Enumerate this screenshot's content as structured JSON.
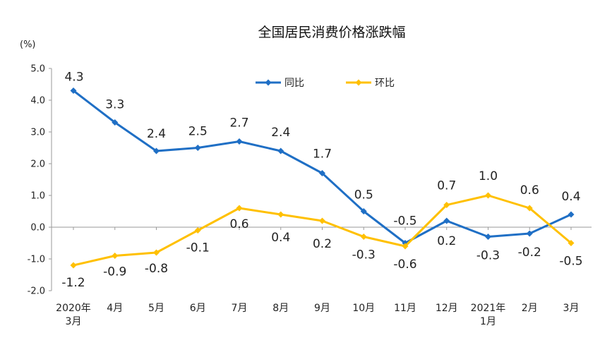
{
  "chart_data": {
    "type": "line",
    "title": "全国居民消费价格涨跌幅",
    "unit": "(%)",
    "ylim": [
      -2.0,
      5.0
    ],
    "yticks": [
      "5.0",
      "4.0",
      "3.0",
      "2.0",
      "1.0",
      "0.0",
      "-1.0",
      "-2.0"
    ],
    "ytick_values": [
      5,
      4,
      3,
      2,
      1,
      0,
      -1,
      -2
    ],
    "categories": [
      [
        "2020年",
        "3月"
      ],
      [
        "4月"
      ],
      [
        "5月"
      ],
      [
        "6月"
      ],
      [
        "7月"
      ],
      [
        "8月"
      ],
      [
        "9月"
      ],
      [
        "10月"
      ],
      [
        "11月"
      ],
      [
        "12月"
      ],
      [
        "2021年",
        "1月"
      ],
      [
        "2月"
      ],
      [
        "3月"
      ]
    ],
    "legend_position": "top-center",
    "grid": false,
    "series": [
      {
        "name": "同比",
        "color": "#1f6fc5",
        "values": [
          4.3,
          3.3,
          2.4,
          2.5,
          2.7,
          2.4,
          1.7,
          0.5,
          -0.5,
          0.2,
          -0.3,
          -0.2,
          0.4
        ],
        "labels": [
          "4.3",
          "3.3",
          "2.4",
          "2.5",
          "2.7",
          "2.4",
          "1.7",
          "0.5",
          "-0.5",
          "0.2",
          "-0.3",
          "-0.2",
          "0.4"
        ]
      },
      {
        "name": "环比",
        "color": "#ffc000",
        "values": [
          -1.2,
          -0.9,
          -0.8,
          -0.1,
          0.6,
          0.4,
          0.2,
          -0.3,
          -0.6,
          0.7,
          1.0,
          0.6,
          -0.5
        ],
        "labels": [
          "-1.2",
          "-0.9",
          "-0.8",
          "-0.1",
          "0.6",
          "0.4",
          "0.2",
          "-0.3",
          "-0.6",
          "0.7",
          "1.0",
          "0.6",
          "-0.5"
        ]
      }
    ]
  }
}
